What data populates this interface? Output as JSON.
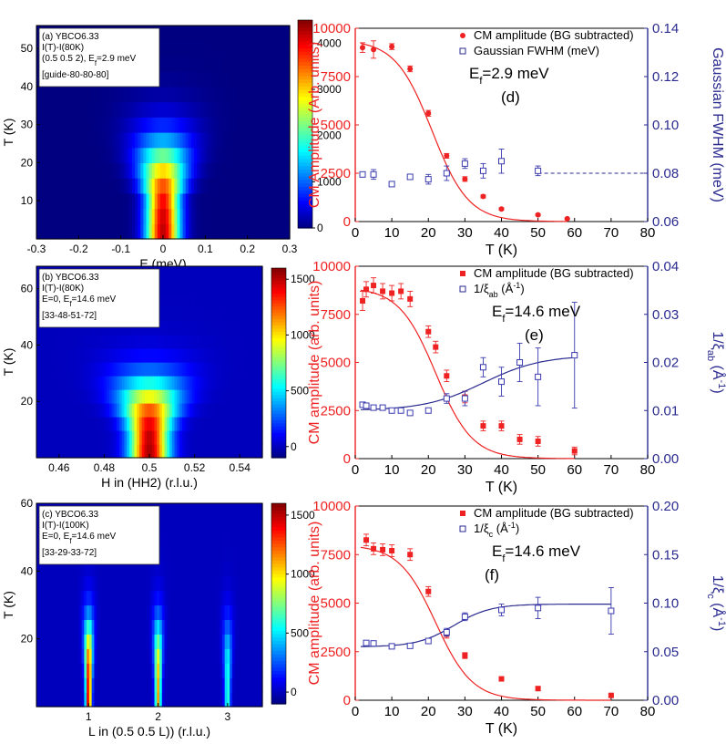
{
  "chart_data": [
    {
      "panel": "a",
      "type": "heatmap",
      "annotation": [
        "(a) YBCO6.33",
        "I(T)-I(80K)",
        "(0.5 0.5 2), E",
        "f",
        "=2.9 meV",
        "[guide-80-80-80]"
      ],
      "xlabel": "E (meV)",
      "ylabel": "T (K)",
      "xlim": [
        -0.3,
        0.3
      ],
      "ylim": [
        0,
        56
      ],
      "xticks": [
        -0.3,
        -0.2,
        -0.1,
        0,
        0.1,
        0.2,
        0.3
      ],
      "xtick_labels": [
        "-0.3",
        "-0.2",
        "-0.1",
        "0",
        "0.1",
        "0.2",
        "0.3"
      ],
      "yticks": [
        10,
        20,
        30,
        40,
        50
      ],
      "colorbar": {
        "min": 0,
        "max": 4500,
        "ticks": [
          0,
          1000,
          2000,
          3000,
          4000
        ]
      },
      "peak": {
        "x": 0,
        "sigma_x": 0.028,
        "amplitude": 4300,
        "T_width": 14
      }
    },
    {
      "panel": "b",
      "type": "heatmap",
      "annotation": [
        "(b) YBCO6.33",
        "I(T)-I(80K)",
        "E=0, E",
        "f",
        "=14.6 meV",
        "[33-48-51-72]"
      ],
      "xlabel": "H in (HH2) (r.l.u.)",
      "ylabel": "T (K)",
      "xlim": [
        0.45,
        0.55
      ],
      "ylim": [
        0,
        68
      ],
      "xticks": [
        0.46,
        0.48,
        0.5,
        0.52,
        0.54
      ],
      "xtick_labels": [
        "0.46",
        "0.48",
        "0.5",
        "0.52",
        "0.54"
      ],
      "yticks": [
        20,
        40,
        60
      ],
      "colorbar": {
        "min": -100,
        "max": 1600,
        "ticks": [
          0,
          500,
          1000,
          1500
        ]
      },
      "peak": {
        "x": 0.5,
        "sigma_x": 0.006,
        "amplitude": 1550,
        "T_width": 16
      }
    },
    {
      "panel": "c",
      "type": "heatmap",
      "annotation": [
        "(c) YBCO6.33",
        "I(T)-I(100K)",
        "E=0, E",
        "f",
        "=14.6 meV",
        "[33-29-33-72]"
      ],
      "xlabel": "L in (0.5 0.5 L)) (r.l.u.)",
      "ylabel": "T (K)",
      "xlim": [
        0.25,
        3.5
      ],
      "ylim": [
        0,
        60
      ],
      "xticks": [
        1,
        2,
        3
      ],
      "xtick_labels": [
        "1",
        "2",
        "3"
      ],
      "yticks": [
        20,
        40,
        60
      ],
      "colorbar": {
        "min": -100,
        "max": 1600,
        "ticks": [
          0,
          500,
          1000,
          1500
        ]
      },
      "peaks": [
        {
          "x": 1,
          "amplitude": 1500
        },
        {
          "x": 2,
          "amplitude": 1150
        },
        {
          "x": 3,
          "amplitude": 650
        }
      ]
    },
    {
      "panel": "d",
      "type": "scatter",
      "xlabel": "T (K)",
      "ylabel": "CM Amplitude (Arb. units)",
      "y2label": "Gaussian FWHM (meV)",
      "xlim": [
        0,
        80
      ],
      "ylim": [
        0,
        10000
      ],
      "y2lim": [
        0.06,
        0.14
      ],
      "xticks": [
        0,
        10,
        20,
        30,
        40,
        50,
        60,
        70,
        80
      ],
      "yticks": [
        0,
        2500,
        5000,
        7500,
        10000
      ],
      "y2ticks": [
        0.06,
        0.08,
        0.1,
        0.12,
        0.14
      ],
      "y2tick_labels": [
        "0.06",
        "0.08",
        "0.10",
        "0.12",
        "0.14"
      ],
      "annotation_parts": [
        "E",
        "f",
        "=2.9 meV"
      ],
      "panel_label": "(d)",
      "legend": [
        "CM amplitude (BG subtracted)",
        "Gaussian FWHM (meV)"
      ],
      "series": [
        {
          "name": "CM amplitude (BG subtracted)",
          "axis": "left",
          "marker": "circle",
          "color": "#ee2222",
          "x": [
            2,
            5,
            10,
            15,
            20,
            25,
            30,
            35,
            40,
            50,
            58
          ],
          "y": [
            9000,
            8900,
            9050,
            7900,
            5600,
            3400,
            2200,
            1300,
            650,
            350,
            150
          ],
          "err": [
            250,
            450,
            150,
            150,
            150,
            120,
            120,
            80,
            60,
            50,
            40
          ]
        },
        {
          "name": "Gaussian FWHM (meV)",
          "axis": "right",
          "marker": "square",
          "color": "#3a3ab0",
          "x": [
            2,
            5,
            10,
            15,
            20,
            25,
            30,
            35,
            40,
            50
          ],
          "y": [
            0.0795,
            0.0795,
            0.0755,
            0.0785,
            0.0775,
            0.08,
            0.084,
            0.081,
            0.085,
            0.081
          ],
          "err": [
            0.001,
            0.002,
            0.0005,
            0.001,
            0.002,
            0.003,
            0.002,
            0.003,
            0.005,
            0.002
          ]
        }
      ],
      "fit": {
        "axis": "left",
        "A": 9400,
        "T0": 21,
        "w": 5
      },
      "flatline": {
        "axis": "right",
        "y": 0.08,
        "x": [
          50,
          80
        ],
        "style": "dashed"
      }
    },
    {
      "panel": "e",
      "type": "scatter",
      "xlabel": "T (K)",
      "ylabel": "CM amplitude (arb. units)",
      "y2label_parts": [
        "1/ξ",
        "ab",
        " (Å",
        "-1",
        ")"
      ],
      "xlim": [
        0,
        80
      ],
      "ylim": [
        0,
        10000
      ],
      "y2lim": [
        0,
        0.04
      ],
      "xticks": [
        0,
        10,
        20,
        30,
        40,
        50,
        60,
        70,
        80
      ],
      "yticks": [
        0,
        2500,
        5000,
        7500,
        10000
      ],
      "y2ticks": [
        0,
        0.01,
        0.02,
        0.03,
        0.04
      ],
      "y2tick_labels": [
        "0.00",
        "0.01",
        "0.02",
        "0.03",
        "0.04"
      ],
      "annotation_parts": [
        "E",
        "f",
        "=14.6 meV"
      ],
      "panel_label": "(e)",
      "legend": [
        "CM amplitude (BG subtracted)",
        "1/ξ_ab (Å^-1)"
      ],
      "series": [
        {
          "name": "CM amplitude (BG subtracted)",
          "axis": "left",
          "marker": "square",
          "color": "#ee2222",
          "x": [
            2,
            3,
            5,
            7.5,
            10,
            12.5,
            15,
            20,
            22,
            25,
            30,
            35,
            40,
            45,
            50,
            60
          ],
          "y": [
            8200,
            8800,
            9000,
            8700,
            8600,
            8700,
            8300,
            6600,
            5800,
            4300,
            3200,
            1700,
            1700,
            1000,
            900,
            400
          ],
          "err": [
            500,
            400,
            400,
            400,
            400,
            400,
            400,
            300,
            300,
            300,
            300,
            250,
            250,
            250,
            250,
            200
          ]
        },
        {
          "name": "1/ξ_ab (Å^-1)",
          "axis": "right",
          "marker": "square",
          "color": "#3a3ab0",
          "x": [
            2,
            3,
            5,
            7.5,
            10,
            12.5,
            15,
            20,
            25,
            30,
            35,
            40,
            45,
            50,
            60
          ],
          "y": [
            0.0112,
            0.011,
            0.0106,
            0.0106,
            0.01,
            0.01,
            0.0095,
            0.01,
            0.0125,
            0.0125,
            0.019,
            0.016,
            0.02,
            0.017,
            0.0215
          ],
          "err": [
            0.0003,
            0.0003,
            0.0003,
            0.0003,
            0.0003,
            0.0003,
            0.0003,
            0.0005,
            0.001,
            0.0015,
            0.002,
            0.003,
            0.004,
            0.006,
            0.011
          ]
        }
      ],
      "fit": {
        "axis": "left",
        "A": 8900,
        "T0": 22,
        "w": 5
      },
      "fit2": {
        "axis": "right",
        "base": 0.01,
        "amp": 0.0115,
        "T0": 35,
        "w": 8,
        "xmax": 60
      }
    },
    {
      "panel": "f",
      "type": "scatter",
      "xlabel": "T (K)",
      "ylabel": "CM amplitude (arb. units)",
      "y2label_parts": [
        "1/ξ",
        "c",
        " (Å",
        "-1",
        ")"
      ],
      "xlim": [
        0,
        80
      ],
      "ylim": [
        0,
        10000
      ],
      "y2lim": [
        0,
        0.2
      ],
      "xticks": [
        0,
        10,
        20,
        30,
        40,
        50,
        60,
        70,
        80
      ],
      "yticks": [
        0,
        2500,
        5000,
        7500,
        10000
      ],
      "y2ticks": [
        0,
        0.05,
        0.1,
        0.15,
        0.2
      ],
      "y2tick_labels": [
        "0.00",
        "0.05",
        "0.10",
        "0.15",
        "0.20"
      ],
      "annotation_parts": [
        "E",
        "f",
        "=14.6 meV"
      ],
      "panel_label": "(f)",
      "legend": [
        "CM amplitude (BG subtracted)",
        "1/ξ_c (Å^-1)"
      ],
      "series": [
        {
          "name": "CM amplitude (BG subtracted)",
          "axis": "left",
          "marker": "square",
          "color": "#ee2222",
          "x": [
            3,
            5,
            7.5,
            10,
            15,
            20,
            25,
            30,
            40,
            50,
            70
          ],
          "y": [
            8250,
            7800,
            7750,
            7700,
            7500,
            5600,
            3400,
            2300,
            1100,
            600,
            250
          ],
          "err": [
            300,
            300,
            300,
            300,
            300,
            250,
            200,
            150,
            100,
            80,
            60
          ]
        },
        {
          "name": "1/ξ_c (Å^-1)",
          "axis": "right",
          "marker": "square",
          "color": "#3a3ab0",
          "x": [
            3,
            5,
            10,
            15,
            20,
            25,
            30,
            40,
            50,
            70
          ],
          "y": [
            0.059,
            0.0585,
            0.0555,
            0.056,
            0.061,
            0.07,
            0.086,
            0.093,
            0.095,
            0.092
          ],
          "err": [
            0.001,
            0.001,
            0.001,
            0.001,
            0.002,
            0.004,
            0.004,
            0.006,
            0.011,
            0.024
          ]
        }
      ],
      "fit": {
        "axis": "left",
        "A": 8000,
        "T0": 22,
        "w": 5
      },
      "fit2": {
        "axis": "right",
        "base": 0.055,
        "amp": 0.044,
        "T0": 27,
        "w": 5,
        "xmax": 70
      }
    }
  ]
}
